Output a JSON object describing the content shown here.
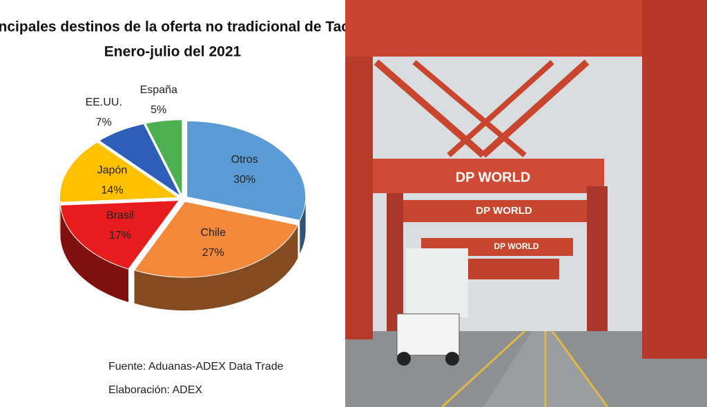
{
  "chart_data": {
    "type": "pie",
    "title": "Principales destinos de la oferta no tradicional  de Tacna",
    "subtitle": "Enero-julio del 2021",
    "categories": [
      "Otros",
      "Chile",
      "Brasil",
      "Japón",
      "EE.UU.",
      "España"
    ],
    "values": [
      30,
      27,
      17,
      14,
      7,
      5
    ],
    "value_labels": [
      "30%",
      "27%",
      "17%",
      "14%",
      "7%",
      "5%"
    ],
    "colors": [
      "#5b9bd5",
      "#f2883a",
      "#e81c1c",
      "#ffc000",
      "#2e5fb8",
      "#4caf50"
    ],
    "notes": [
      "Fuente: Aduanas-ADEX Data Trade",
      "Elaboración: ADEX"
    ]
  },
  "photo": {
    "signs": [
      "DP WORLD",
      "DP WORLD",
      "DP WORLD"
    ]
  }
}
